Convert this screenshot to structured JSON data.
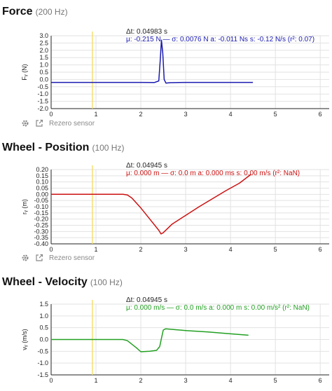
{
  "panels": [
    {
      "title": "Force",
      "rate": "(200 Hz)",
      "ylabel": "Fᵧ (N)",
      "dt": "Δt: 0.04983 s",
      "stats": "μ: -0.215 N — σ: 0.0076 N   a: -0.011 Ns   s: -0.12 N/s (r²: 0.07)",
      "toolbar": {
        "settings_icon": "gear-icon",
        "link_icon": "external-link-icon",
        "rezero_label": "Rezero sensor"
      }
    },
    {
      "title": "Wheel - Position",
      "rate": "(100 Hz)",
      "ylabel": "rᵧ (m)",
      "dt": "Δt: 0.04945 s",
      "stats": "μ: 0.000 m — σ: 0.0 m   a: 0.000 ms   s: 0.00 m/s (r²: NaN)",
      "toolbar": {
        "settings_icon": "gear-icon",
        "link_icon": "external-link-icon",
        "rezero_label": "Rezero sensor"
      }
    },
    {
      "title": "Wheel - Velocity",
      "rate": "(100 Hz)",
      "ylabel": "vᵧ (m/s)",
      "dt": "Δt: 0.04945 s",
      "stats": "μ: 0.000 m/s — σ: 0.0 m/s   a: 0.000 m   s: 0.00 m/s² (r²: NaN)"
    }
  ],
  "chart_data": [
    {
      "type": "line",
      "xlim": [
        0,
        6.2
      ],
      "ylim": [
        -2.0,
        3.0
      ],
      "xticks": [
        "0",
        "1",
        "2",
        "3",
        "4",
        "5",
        "6"
      ],
      "yticks": [
        "3.0",
        "2.5",
        "2.0",
        "1.5",
        "1.0",
        "0.5",
        "0.0",
        "-0.5",
        "-1.0",
        "-1.5",
        "-2.0"
      ],
      "grid": true,
      "cursor_x": 0.92,
      "series": [
        {
          "color": "#1a1ab0",
          "x": [
            0,
            0.5,
            1.0,
            1.5,
            2.0,
            2.3,
            2.4,
            2.43,
            2.46,
            2.49,
            2.52,
            2.56,
            2.65,
            3.0,
            3.5,
            4.0,
            4.5
          ],
          "y": [
            -0.2,
            -0.2,
            -0.2,
            -0.2,
            -0.2,
            -0.21,
            -0.1,
            1.2,
            2.7,
            1.8,
            0.0,
            -0.25,
            -0.22,
            -0.2,
            -0.2,
            -0.2,
            -0.2
          ]
        }
      ]
    },
    {
      "type": "line",
      "xlim": [
        0,
        6.2
      ],
      "ylim": [
        -0.4,
        0.2
      ],
      "xticks": [
        "0",
        "1",
        "2",
        "3",
        "4",
        "5",
        "6"
      ],
      "yticks": [
        "0.20",
        "0.15",
        "0.10",
        "0.05",
        "0.00",
        "-0.05",
        "-0.10",
        "-0.15",
        "-0.20",
        "-0.25",
        "-0.30",
        "-0.35",
        "-0.40"
      ],
      "grid": true,
      "cursor_x": 0.92,
      "series": [
        {
          "color": "#cc1111",
          "x": [
            0,
            1.0,
            1.6,
            1.7,
            1.8,
            2.0,
            2.2,
            2.4,
            2.45,
            2.5,
            2.7,
            3.0,
            3.3,
            3.6,
            3.9,
            4.2,
            4.45
          ],
          "y": [
            0.0,
            0.0,
            0.0,
            -0.005,
            -0.03,
            -0.11,
            -0.2,
            -0.29,
            -0.32,
            -0.31,
            -0.24,
            -0.17,
            -0.1,
            -0.035,
            0.03,
            0.09,
            0.16
          ]
        }
      ]
    },
    {
      "type": "line",
      "xlim": [
        0,
        6.2
      ],
      "ylim": [
        -1.5,
        1.5
      ],
      "xticks": [
        "0",
        "1",
        "2",
        "3",
        "4",
        "5",
        "6"
      ],
      "yticks": [
        "1.5",
        "1.0",
        "0.5",
        "0.0",
        "-0.5",
        "-1.0",
        "-1.5"
      ],
      "grid": true,
      "cursor_x": 0.92,
      "series": [
        {
          "color": "#22a022",
          "x": [
            0,
            1.0,
            1.6,
            1.7,
            1.9,
            2.0,
            2.2,
            2.35,
            2.42,
            2.46,
            2.5,
            2.55,
            3.0,
            3.5,
            4.0,
            4.4
          ],
          "y": [
            0.0,
            0.0,
            0.0,
            -0.05,
            -0.35,
            -0.52,
            -0.5,
            -0.46,
            -0.3,
            0.05,
            0.4,
            0.45,
            0.38,
            0.32,
            0.24,
            0.18
          ]
        }
      ]
    }
  ]
}
